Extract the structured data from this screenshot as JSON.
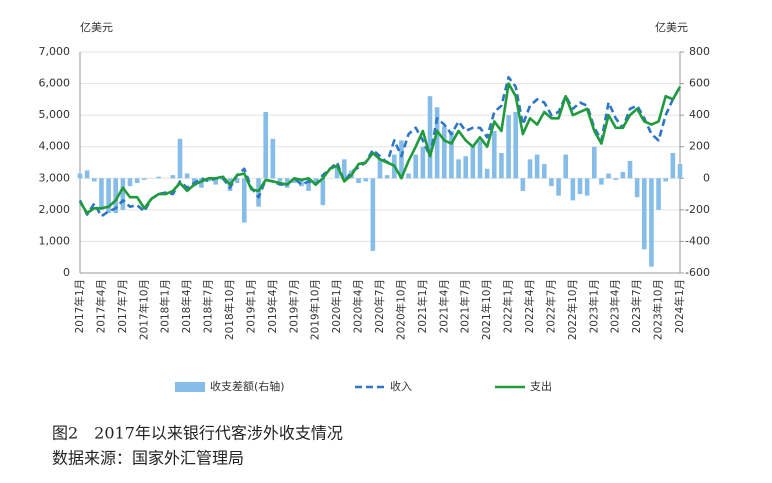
{
  "chart_data": {
    "type": "combo",
    "y_label": "亿美元",
    "y2_label": "亿美元",
    "caption": "图2　2017年以来银行代客涉外收支情况",
    "source": "数据来源：国家外汇管理局",
    "categories": [
      "2017年1月",
      null,
      null,
      "2017年4月",
      null,
      null,
      "2017年7月",
      null,
      null,
      "2017年10月",
      null,
      null,
      "2018年1月",
      null,
      null,
      "2018年4月",
      null,
      null,
      "2018年7月",
      null,
      null,
      "2018年10月",
      null,
      null,
      "2019年1月",
      null,
      null,
      "2019年4月",
      null,
      null,
      "2019年7月",
      null,
      null,
      "2019年10月",
      null,
      null,
      "2020年1月",
      null,
      null,
      "2020年4月",
      null,
      null,
      "2020年7月",
      null,
      null,
      "2020年10月",
      null,
      null,
      "2021年1月",
      null,
      null,
      "2021年4月",
      null,
      null,
      "2021年7月",
      null,
      null,
      "2021年10月",
      null,
      null,
      "2022年1月",
      null,
      null,
      "2022年4月",
      null,
      null,
      "2022年7月",
      null,
      null,
      "2022年10月",
      null,
      null,
      "2023年1月",
      null,
      null,
      "2023年4月",
      null,
      null,
      "2023年7月",
      null,
      null,
      "2023年10月",
      null,
      null,
      "2024年1月"
    ],
    "series": [
      {
        "name": "收支差额(右轴)",
        "kind": "bar",
        "axis": "y2",
        "color": "#86bde8",
        "values": [
          30,
          50,
          -20,
          -200,
          -220,
          -220,
          -200,
          -50,
          -30,
          -10,
          0,
          10,
          0,
          20,
          250,
          30,
          -50,
          -60,
          -20,
          -40,
          -10,
          -80,
          -30,
          -280,
          0,
          -180,
          420,
          250,
          -20,
          -60,
          -30,
          -50,
          -80,
          -40,
          -170,
          0,
          80,
          120,
          50,
          -30,
          -20,
          -460,
          120,
          20,
          150,
          240,
          30,
          150,
          200,
          520,
          450,
          330,
          300,
          120,
          140,
          200,
          240,
          60,
          300,
          160,
          400,
          420,
          -80,
          120,
          150,
          90,
          -50,
          -110,
          150,
          -140,
          -100,
          -110,
          200,
          -40,
          30,
          -10,
          40,
          110,
          -120,
          -450,
          -560,
          -200,
          -20,
          160,
          90
        ]
      },
      {
        "name": "收入",
        "kind": "line",
        "dash": true,
        "color": "#2e75c6",
        "values": [
          2300,
          1850,
          2200,
          1800,
          1950,
          2050,
          2300,
          2100,
          2150,
          1950,
          2350,
          2500,
          2550,
          2500,
          2900,
          2700,
          2850,
          3000,
          2900,
          3000,
          3000,
          2700,
          3100,
          3300,
          2700,
          2400,
          2950,
          2900,
          2800,
          2800,
          3000,
          2800,
          2900,
          2800,
          3100,
          3300,
          3500,
          2900,
          3200,
          3350,
          3500,
          3900,
          3700,
          3500,
          4200,
          3700,
          4400,
          4600,
          4200,
          3700,
          4900,
          4700,
          4400,
          4800,
          4500,
          4600,
          4600,
          4300,
          5100,
          5300,
          6200,
          5900,
          4700,
          5300,
          5500,
          5400,
          5000,
          5100,
          5600,
          5200,
          5400,
          5300,
          4600,
          4200,
          5400,
          4900,
          4600,
          5200,
          5300,
          4900,
          4400,
          4200,
          5000,
          5500,
          5900
        ]
      },
      {
        "name": "支出",
        "kind": "line",
        "dash": false,
        "color": "#1f9a3c",
        "values": [
          2250,
          1900,
          2050,
          2050,
          2100,
          2300,
          2700,
          2400,
          2400,
          2050,
          2350,
          2500,
          2500,
          2600,
          2850,
          2600,
          2800,
          2900,
          3000,
          3000,
          3050,
          2800,
          3100,
          3150,
          2650,
          2600,
          2950,
          2900,
          2850,
          2800,
          3000,
          2950,
          3000,
          2800,
          3000,
          3300,
          3400,
          2900,
          3100,
          3450,
          3500,
          3800,
          3600,
          3500,
          3400,
          3000,
          3550,
          4000,
          4500,
          3700,
          4500,
          4200,
          4100,
          4500,
          4200,
          4000,
          4300,
          4000,
          4800,
          4500,
          6000,
          5600,
          4400,
          4900,
          4700,
          5100,
          4900,
          4900,
          5600,
          5000,
          5100,
          5200,
          4500,
          4100,
          5000,
          4600,
          4600,
          5000,
          5200,
          4800,
          4700,
          4800,
          5600,
          5500,
          5900
        ]
      }
    ],
    "ylim": [
      0,
      7000
    ],
    "yticks": [
      0,
      {
        "value": 1000,
        "label": "1,000"
      },
      {
        "value": 2000,
        "label": "2,000"
      },
      {
        "value": 3000,
        "label": "3,000"
      },
      {
        "value": 4000,
        "label": "4,000"
      },
      {
        "value": 5000,
        "label": "5,000"
      },
      {
        "value": 6000,
        "label": "6,000"
      },
      {
        "value": 7000,
        "label": "7,000"
      }
    ],
    "y2lim": [
      -600,
      800
    ],
    "y2ticks": [
      -600,
      -400,
      -200,
      0,
      200,
      400,
      600,
      800
    ],
    "grid": true
  }
}
